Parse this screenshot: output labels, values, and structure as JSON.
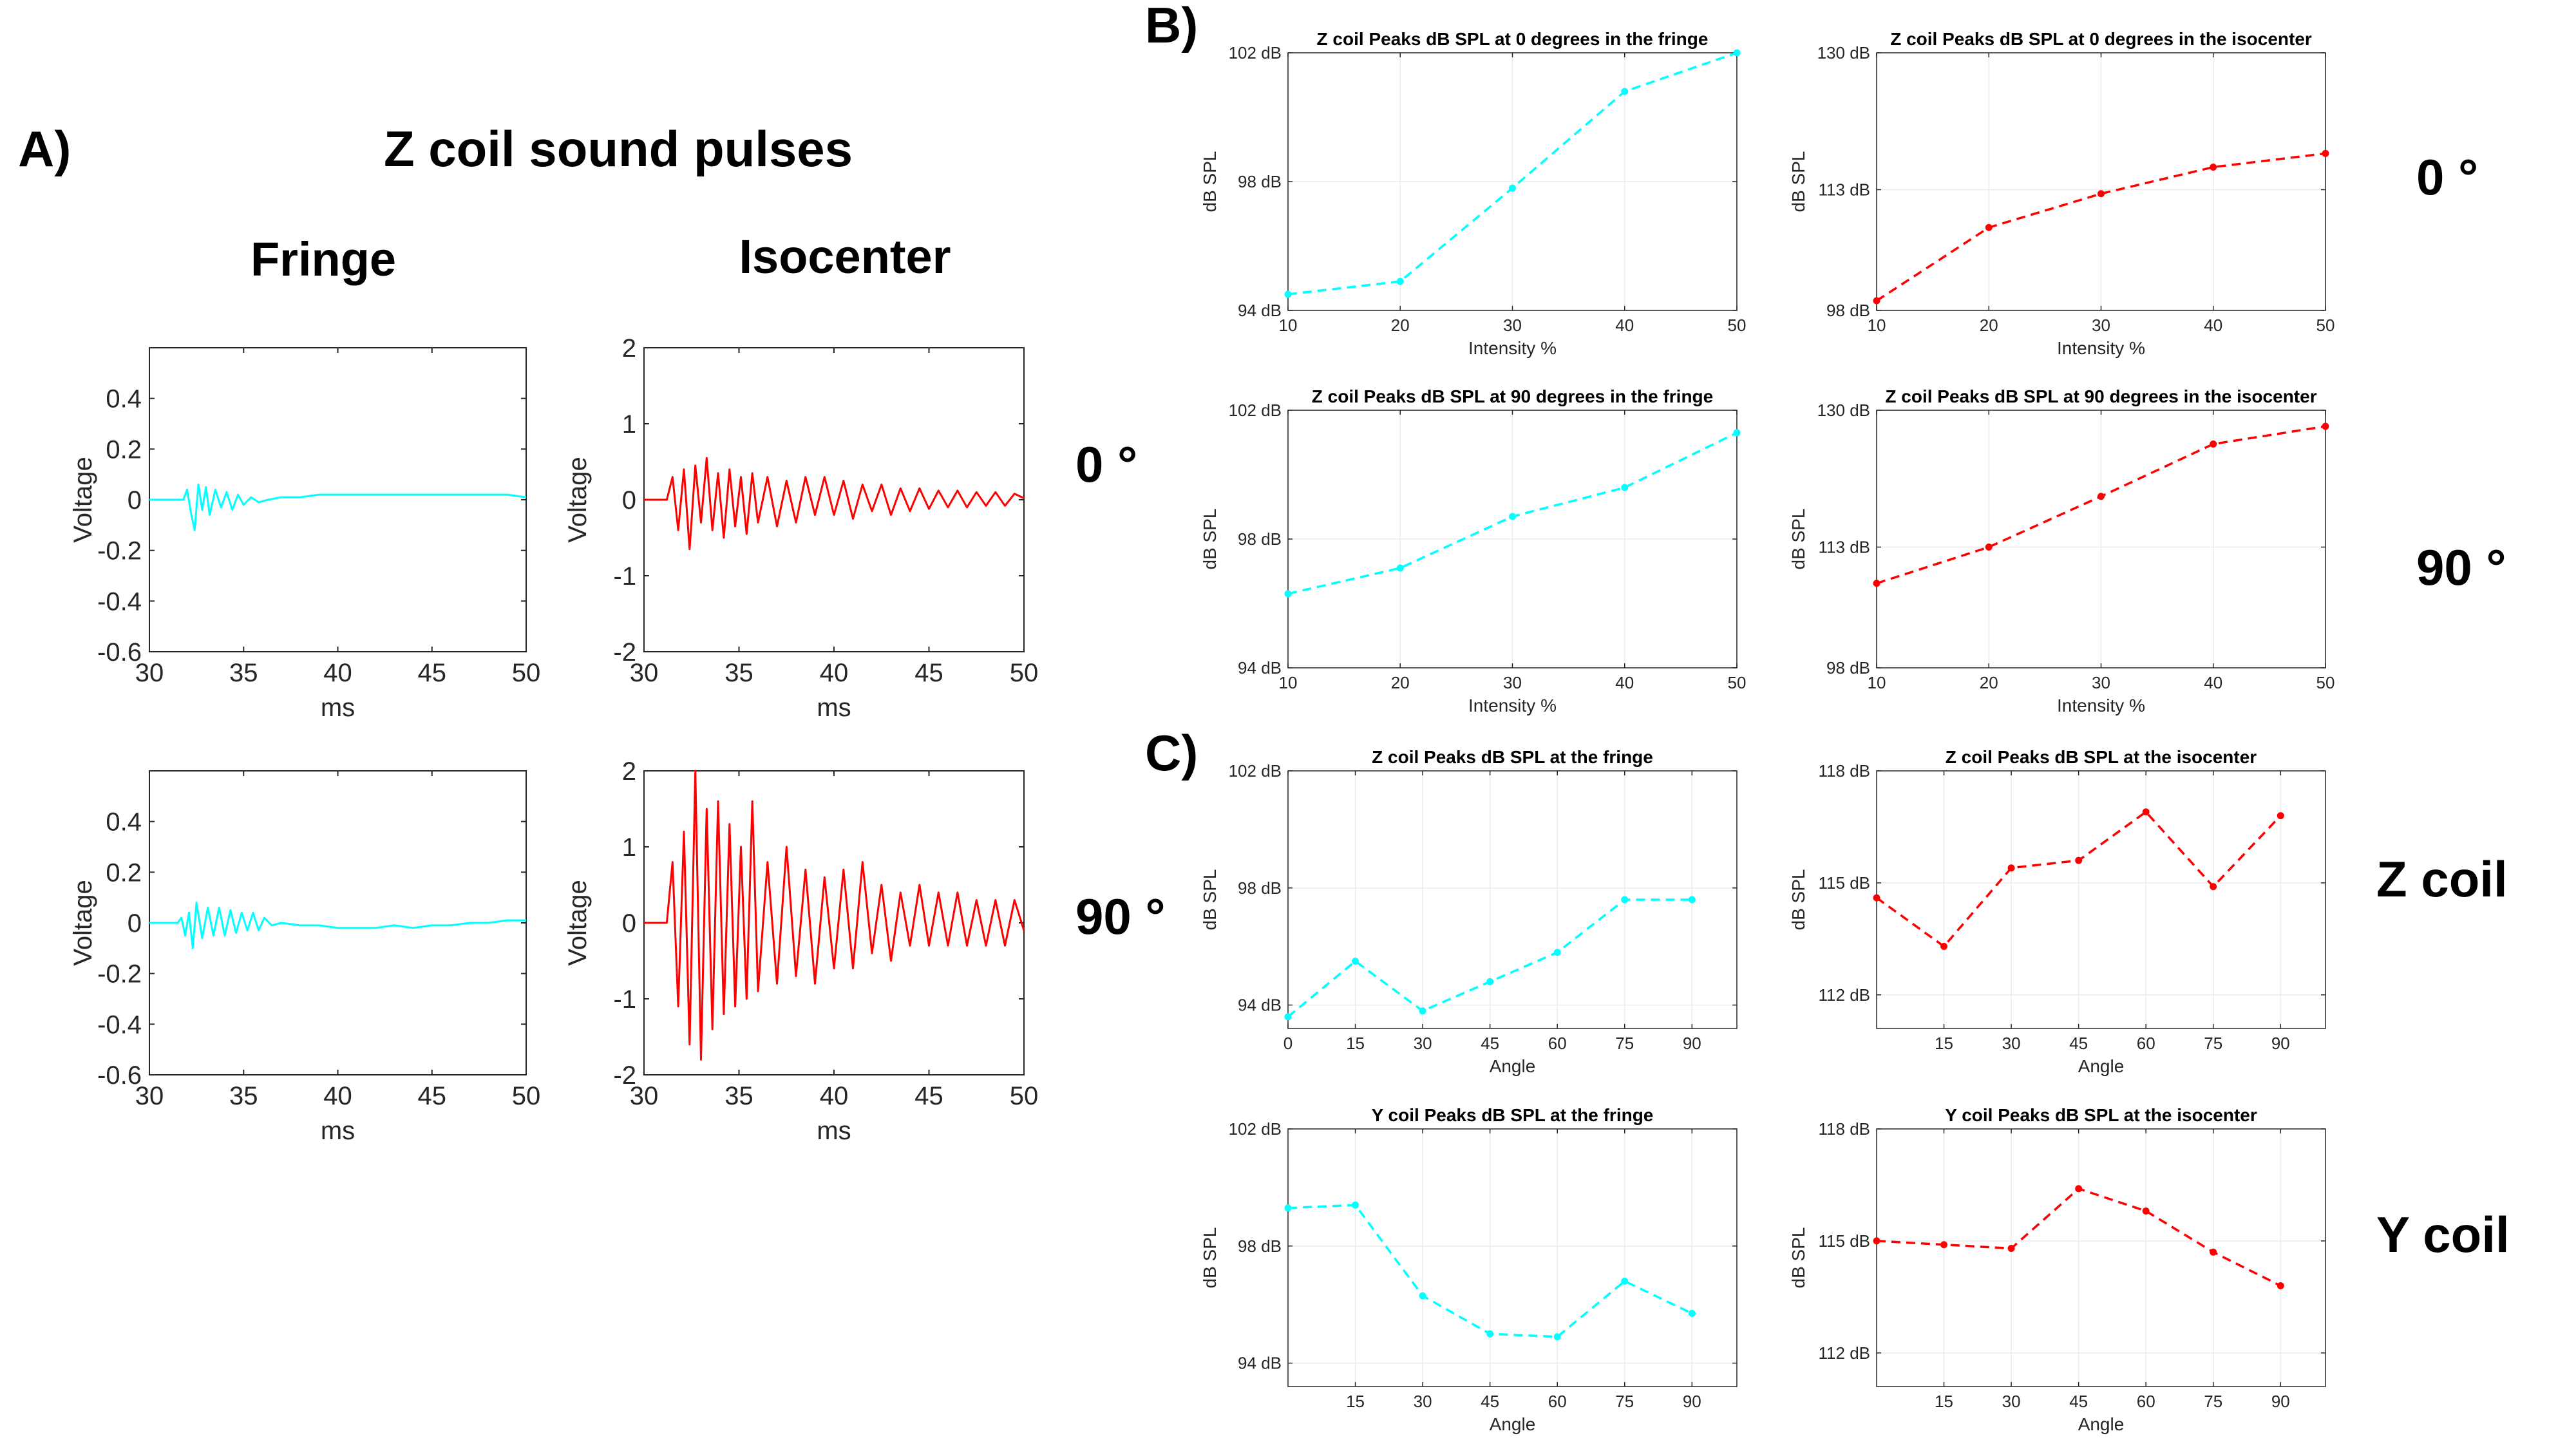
{
  "panel_labels": {
    "a": "A)",
    "b": "B)",
    "c": "C)"
  },
  "section_a": {
    "title": "Z coil sound pulses",
    "col_fringe": "Fringe",
    "col_isocenter": "Isocenter",
    "row_0": "0 °",
    "row_90": "90 °"
  },
  "side_labels": {
    "b_row_0": "0 °",
    "b_row_90": "90 °",
    "c_row_z": "Z coil",
    "c_row_y": "Y coil"
  },
  "colors": {
    "fringe": "#00ffff",
    "isocenter": "#ff0000",
    "axis": "#262626",
    "grid": "#ebebeb"
  },
  "chart_data": [
    {
      "id": "a1",
      "type": "line",
      "title": "",
      "xlabel": "ms",
      "ylabel": "Voltage",
      "xlim": [
        30,
        50
      ],
      "ylim": [
        -0.6,
        0.6
      ],
      "xticks": [
        30,
        35,
        40,
        45,
        50
      ],
      "yticks": [
        -0.6,
        -0.4,
        -0.2,
        0,
        0.2,
        0.4
      ],
      "series": [
        {
          "name": "Fringe 0°",
          "color": "#00ffff",
          "x": [
            30,
            31.8,
            32,
            32.2,
            32.4,
            32.6,
            32.8,
            33,
            33.2,
            33.5,
            33.8,
            34.1,
            34.4,
            34.7,
            35,
            35.4,
            35.8,
            36.3,
            37,
            38,
            39,
            40,
            41,
            42,
            43,
            44,
            45,
            46,
            47,
            48,
            49,
            50
          ],
          "y": [
            0,
            0,
            0.04,
            -0.05,
            -0.12,
            0.06,
            -0.04,
            0.05,
            -0.06,
            0.04,
            -0.03,
            0.03,
            -0.04,
            0.02,
            -0.02,
            0.01,
            -0.01,
            0,
            0.01,
            0.01,
            0.02,
            0.02,
            0.02,
            0.02,
            0.02,
            0.02,
            0.02,
            0.02,
            0.02,
            0.02,
            0.02,
            0.01
          ]
        }
      ]
    },
    {
      "id": "a2",
      "type": "line",
      "title": "",
      "xlabel": "ms",
      "ylabel": "Voltage",
      "xlim": [
        30,
        50
      ],
      "ylim": [
        -2,
        2
      ],
      "xticks": [
        30,
        35,
        40,
        45,
        50
      ],
      "yticks": [
        -2,
        -1,
        0,
        1,
        2
      ],
      "series": [
        {
          "name": "Isocenter 0°",
          "color": "#ff0000",
          "x": [
            30,
            31.2,
            31.5,
            31.8,
            32.1,
            32.4,
            32.7,
            33,
            33.3,
            33.6,
            33.9,
            34.2,
            34.5,
            34.8,
            35.1,
            35.4,
            35.7,
            36,
            36.5,
            37,
            37.5,
            38,
            38.5,
            39,
            39.5,
            40,
            40.5,
            41,
            41.5,
            42,
            42.5,
            43,
            43.5,
            44,
            44.5,
            45,
            45.5,
            46,
            46.5,
            47,
            47.5,
            48,
            48.5,
            49,
            49.5,
            50
          ],
          "y": [
            0,
            0,
            0.3,
            -0.4,
            0.4,
            -0.65,
            0.45,
            -0.3,
            0.55,
            -0.4,
            0.35,
            -0.5,
            0.4,
            -0.35,
            0.3,
            -0.45,
            0.35,
            -0.3,
            0.3,
            -0.35,
            0.25,
            -0.3,
            0.3,
            -0.2,
            0.3,
            -0.2,
            0.25,
            -0.25,
            0.2,
            -0.15,
            0.2,
            -0.2,
            0.15,
            -0.15,
            0.15,
            -0.12,
            0.12,
            -0.1,
            0.12,
            -0.1,
            0.1,
            -0.08,
            0.1,
            -0.08,
            0.08,
            0.02
          ]
        }
      ]
    },
    {
      "id": "a3",
      "type": "line",
      "title": "",
      "xlabel": "ms",
      "ylabel": "Voltage",
      "xlim": [
        30,
        50
      ],
      "ylim": [
        -0.6,
        0.6
      ],
      "xticks": [
        30,
        35,
        40,
        45,
        50
      ],
      "yticks": [
        -0.6,
        -0.4,
        -0.2,
        0,
        0.2,
        0.4
      ],
      "series": [
        {
          "name": "Fringe 90°",
          "color": "#00ffff",
          "x": [
            30,
            31.5,
            31.7,
            31.9,
            32.1,
            32.3,
            32.5,
            32.8,
            33.1,
            33.4,
            33.7,
            34,
            34.3,
            34.6,
            34.9,
            35.2,
            35.5,
            35.8,
            36.1,
            36.5,
            37,
            38,
            39,
            40,
            41,
            42,
            43,
            44,
            45,
            46,
            47,
            48,
            49,
            50
          ],
          "y": [
            0,
            0,
            0.02,
            -0.05,
            0.04,
            -0.1,
            0.08,
            -0.06,
            0.06,
            -0.05,
            0.06,
            -0.05,
            0.05,
            -0.04,
            0.04,
            -0.03,
            0.04,
            -0.03,
            0.02,
            -0.01,
            0,
            -0.01,
            -0.01,
            -0.02,
            -0.02,
            -0.02,
            -0.01,
            -0.02,
            -0.01,
            -0.01,
            0,
            0,
            0.01,
            0.01
          ]
        }
      ]
    },
    {
      "id": "a4",
      "type": "line",
      "title": "",
      "xlabel": "ms",
      "ylabel": "Voltage",
      "xlim": [
        30,
        50
      ],
      "ylim": [
        -2,
        2
      ],
      "xticks": [
        30,
        35,
        40,
        45,
        50
      ],
      "yticks": [
        -2,
        -1,
        0,
        1,
        2
      ],
      "series": [
        {
          "name": "Isocenter 90°",
          "color": "#ff0000",
          "x": [
            30,
            31.2,
            31.5,
            31.8,
            32.1,
            32.4,
            32.7,
            33,
            33.3,
            33.6,
            33.9,
            34.2,
            34.5,
            34.8,
            35.1,
            35.4,
            35.7,
            36,
            36.5,
            37,
            37.5,
            38,
            38.5,
            39,
            39.5,
            40,
            40.5,
            41,
            41.5,
            42,
            42.5,
            43,
            43.5,
            44,
            44.5,
            45,
            45.5,
            46,
            46.5,
            47,
            47.5,
            48,
            48.5,
            49,
            49.5,
            50
          ],
          "y": [
            0,
            0,
            0.8,
            -1.1,
            1.2,
            -1.6,
            2.0,
            -1.8,
            1.5,
            -1.4,
            1.6,
            -1.2,
            1.3,
            -1.1,
            1.0,
            -1.0,
            1.6,
            -0.9,
            0.8,
            -0.8,
            1.0,
            -0.7,
            0.7,
            -0.8,
            0.6,
            -0.6,
            0.7,
            -0.6,
            0.8,
            -0.4,
            0.5,
            -0.5,
            0.4,
            -0.3,
            0.5,
            -0.3,
            0.4,
            -0.3,
            0.4,
            -0.3,
            0.3,
            -0.3,
            0.3,
            -0.3,
            0.3,
            -0.1
          ]
        }
      ]
    },
    {
      "id": "b1",
      "type": "line",
      "title": "Z coil Peaks dB SPL at 0 degrees in the fringe",
      "xlabel": "Intensity %",
      "ylabel": "dB SPL",
      "x": [
        10,
        20,
        30,
        40,
        50
      ],
      "xlim": [
        10,
        50
      ],
      "ylim": [
        94,
        102
      ],
      "yticks": [
        94,
        98,
        102
      ],
      "ytick_suffix": " dB",
      "series": [
        {
          "name": "fringe",
          "color": "#00ffff",
          "values": [
            94.5,
            94.9,
            97.8,
            100.8,
            102.0
          ]
        }
      ]
    },
    {
      "id": "b2",
      "type": "line",
      "title": "Z coil Peaks dB SPL at 0 degrees in the isocenter",
      "xlabel": "Intensity %",
      "ylabel": "dB SPL",
      "x": [
        10,
        20,
        30,
        40,
        50
      ],
      "xlim": [
        10,
        50
      ],
      "ylim": [
        98,
        130
      ],
      "yticks": [
        98,
        113,
        130
      ],
      "ytick_suffix": " dB",
      "series": [
        {
          "name": "isocenter",
          "color": "#ff0000",
          "values": [
            99.2,
            108.3,
            112.5,
            115.8,
            117.5
          ]
        }
      ]
    },
    {
      "id": "b3",
      "type": "line",
      "title": "Z coil Peaks dB SPL at 90 degrees in the fringe",
      "xlabel": "Intensity %",
      "ylabel": "dB SPL",
      "x": [
        10,
        20,
        30,
        40,
        50
      ],
      "xlim": [
        10,
        50
      ],
      "ylim": [
        94,
        102
      ],
      "yticks": [
        94,
        98,
        102
      ],
      "ytick_suffix": " dB",
      "series": [
        {
          "name": "fringe",
          "color": "#00ffff",
          "values": [
            96.3,
            97.1,
            98.7,
            99.6,
            101.3
          ]
        }
      ]
    },
    {
      "id": "b4",
      "type": "line",
      "title": "Z coil Peaks dB SPL at 90 degrees in the isocenter",
      "xlabel": "Intensity %",
      "ylabel": "dB SPL",
      "x": [
        10,
        20,
        30,
        40,
        50
      ],
      "xlim": [
        10,
        50
      ],
      "ylim": [
        98,
        130
      ],
      "yticks": [
        98,
        113,
        130
      ],
      "ytick_suffix": " dB",
      "series": [
        {
          "name": "isocenter",
          "color": "#ff0000",
          "values": [
            108.5,
            113.0,
            119.3,
            125.8,
            128.0
          ]
        }
      ]
    },
    {
      "id": "c1",
      "type": "line",
      "title": "Z coil Peaks dB SPL at the fringe",
      "xlabel": "Angle",
      "ylabel": "dB SPL",
      "x": [
        0,
        15,
        30,
        45,
        60,
        75,
        90
      ],
      "xlim": [
        0,
        100
      ],
      "xticks": [
        0,
        15,
        30,
        45,
        60,
        75,
        90
      ],
      "ylim": [
        93.2,
        102
      ],
      "yticks": [
        94,
        98,
        102
      ],
      "ytick_suffix": " dB",
      "series": [
        {
          "name": "fringe",
          "color": "#00ffff",
          "values": [
            93.6,
            95.5,
            93.8,
            94.8,
            95.8,
            97.6,
            97.6
          ]
        }
      ]
    },
    {
      "id": "c2",
      "type": "line",
      "title": "Z coil Peaks dB SPL at the isocenter",
      "xlabel": "Angle",
      "ylabel": "dB SPL",
      "x": [
        0,
        15,
        30,
        45,
        60,
        75,
        90
      ],
      "xlim": [
        0,
        100
      ],
      "xticks": [
        15,
        30,
        45,
        60,
        75,
        90
      ],
      "ylim": [
        111.1,
        118
      ],
      "yticks": [
        112,
        115,
        118
      ],
      "ytick_suffix": " dB",
      "series": [
        {
          "name": "isocenter",
          "color": "#ff0000",
          "values": [
            114.6,
            113.3,
            115.4,
            115.6,
            116.9,
            114.9,
            116.8
          ]
        }
      ]
    },
    {
      "id": "c3",
      "type": "line",
      "title": "Y coil Peaks dB SPL at the fringe",
      "xlabel": "Angle",
      "ylabel": "dB SPL",
      "x": [
        0,
        15,
        30,
        45,
        60,
        75,
        90
      ],
      "xlim": [
        0,
        100
      ],
      "xticks": [
        15,
        30,
        45,
        60,
        75,
        90
      ],
      "ylim": [
        93.2,
        102
      ],
      "yticks": [
        94,
        98,
        102
      ],
      "ytick_suffix": " dB",
      "series": [
        {
          "name": "fringe",
          "color": "#00ffff",
          "values": [
            99.3,
            99.4,
            96.3,
            95.0,
            94.9,
            96.8,
            95.7
          ]
        }
      ]
    },
    {
      "id": "c4",
      "type": "line",
      "title": "Y coil Peaks dB SPL at the isocenter",
      "xlabel": "Angle",
      "ylabel": "dB SPL",
      "x": [
        0,
        15,
        30,
        45,
        60,
        75,
        90
      ],
      "xlim": [
        0,
        100
      ],
      "xticks": [
        15,
        30,
        45,
        60,
        75,
        90
      ],
      "ylim": [
        111.1,
        118
      ],
      "yticks": [
        112,
        115,
        118
      ],
      "ytick_suffix": " dB",
      "series": [
        {
          "name": "isocenter",
          "color": "#ff0000",
          "values": [
            115.0,
            114.9,
            114.8,
            116.4,
            115.8,
            114.7,
            113.8
          ]
        }
      ]
    }
  ]
}
